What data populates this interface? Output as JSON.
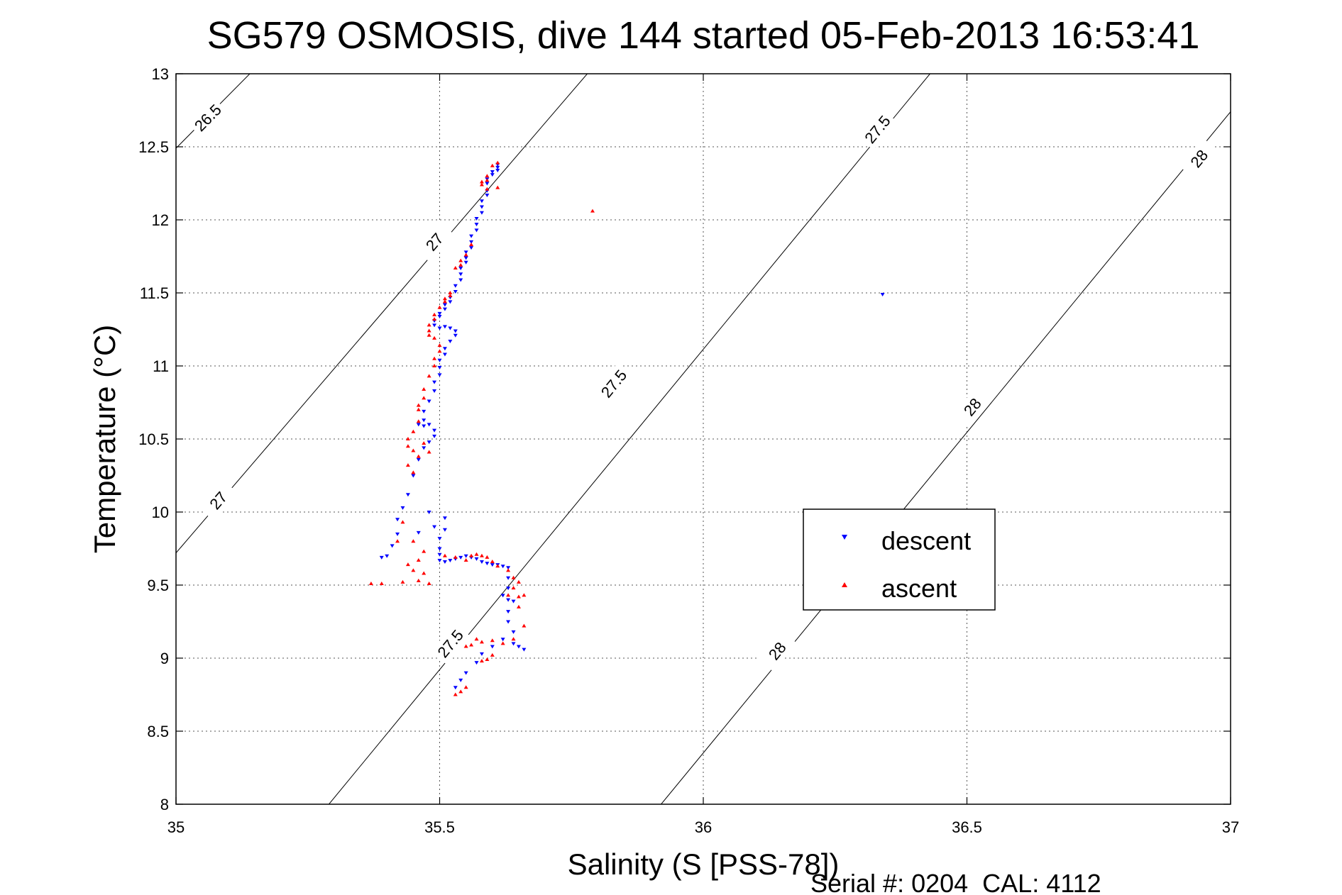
{
  "chart_data": {
    "type": "scatter",
    "title": "SG579 OSMOSIS, dive 144 started 05-Feb-2013 16:53:41",
    "xlabel": "Salinity (S [PSS-78])",
    "ylabel": "Temperature (°C)",
    "xlim": [
      35,
      37
    ],
    "ylim": [
      8,
      13
    ],
    "x_ticks": [
      "35",
      "35.5",
      "36",
      "36.5",
      "37"
    ],
    "y_ticks": [
      "8",
      "8.5",
      "9",
      "9.5",
      "10",
      "10.5",
      "11",
      "11.5",
      "12",
      "12.5",
      "13"
    ],
    "grid": true,
    "legend_position": "right",
    "footer": "Serial #: 0204  CAL: 4112",
    "isopycnals": [
      {
        "label": "26.5",
        "points": [
          [
            35.0,
            12.49
          ],
          [
            35.14,
            13.0
          ]
        ],
        "label_at": [
          [
            35.06,
            12.7
          ]
        ]
      },
      {
        "label": "27",
        "points": [
          [
            35.0,
            9.72
          ],
          [
            35.78,
            13.0
          ]
        ],
        "label_at": [
          [
            35.08,
            10.08
          ],
          [
            35.49,
            11.85
          ]
        ]
      },
      {
        "label": "27.5",
        "points": [
          [
            35.29,
            8.0
          ],
          [
            36.43,
            13.0
          ]
        ],
        "label_at": [
          [
            35.52,
            9.1
          ],
          [
            35.83,
            10.88
          ],
          [
            36.33,
            12.62
          ]
        ]
      },
      {
        "label": "28",
        "points": [
          [
            35.92,
            8.0
          ],
          [
            37.0,
            12.74
          ]
        ],
        "label_at": [
          [
            36.14,
            9.05
          ],
          [
            36.51,
            10.72
          ],
          [
            36.94,
            12.42
          ]
        ]
      }
    ],
    "series": [
      {
        "name": "descent",
        "color": "#0000ff",
        "marker": "triangle-down",
        "points": [
          [
            35.61,
            12.38
          ],
          [
            35.61,
            12.36
          ],
          [
            35.61,
            12.34
          ],
          [
            35.6,
            12.33
          ],
          [
            35.6,
            12.31
          ],
          [
            35.59,
            12.28
          ],
          [
            35.59,
            12.25
          ],
          [
            35.59,
            12.2
          ],
          [
            35.59,
            12.17
          ],
          [
            35.58,
            12.13
          ],
          [
            35.58,
            12.09
          ],
          [
            35.58,
            12.05
          ],
          [
            35.57,
            12.01
          ],
          [
            35.57,
            11.97
          ],
          [
            35.57,
            11.93
          ],
          [
            35.56,
            11.89
          ],
          [
            35.56,
            11.85
          ],
          [
            35.56,
            11.81
          ],
          [
            35.55,
            11.78
          ],
          [
            35.55,
            11.74
          ],
          [
            35.55,
            11.71
          ],
          [
            35.54,
            11.67
          ],
          [
            35.54,
            11.63
          ],
          [
            35.54,
            11.59
          ],
          [
            35.53,
            11.55
          ],
          [
            35.53,
            11.51
          ],
          [
            35.52,
            11.47
          ],
          [
            35.52,
            11.44
          ],
          [
            35.51,
            11.42
          ],
          [
            35.51,
            11.39
          ],
          [
            35.5,
            11.36
          ],
          [
            35.5,
            11.34
          ],
          [
            35.49,
            11.31
          ],
          [
            35.49,
            11.28
          ],
          [
            35.5,
            11.26
          ],
          [
            35.51,
            11.27
          ],
          [
            35.52,
            11.26
          ],
          [
            35.53,
            11.24
          ],
          [
            35.53,
            11.21
          ],
          [
            35.52,
            11.17
          ],
          [
            35.51,
            11.12
          ],
          [
            35.51,
            11.08
          ],
          [
            35.5,
            11.04
          ],
          [
            35.5,
            10.99
          ],
          [
            35.5,
            10.94
          ],
          [
            35.49,
            10.89
          ],
          [
            35.49,
            10.83
          ],
          [
            35.48,
            10.76
          ],
          [
            35.47,
            10.69
          ],
          [
            35.47,
            10.63
          ],
          [
            35.46,
            10.6
          ],
          [
            35.47,
            10.59
          ],
          [
            35.48,
            10.6
          ],
          [
            35.49,
            10.56
          ],
          [
            35.49,
            10.52
          ],
          [
            35.48,
            10.48
          ],
          [
            35.47,
            10.44
          ],
          [
            35.46,
            10.36
          ],
          [
            35.45,
            10.25
          ],
          [
            35.44,
            10.12
          ],
          [
            35.43,
            10.03
          ],
          [
            35.42,
            9.95
          ],
          [
            35.42,
            9.85
          ],
          [
            35.41,
            9.77
          ],
          [
            35.4,
            9.7
          ],
          [
            35.39,
            9.69
          ],
          [
            35.46,
            9.86
          ],
          [
            35.48,
            10.0
          ],
          [
            35.49,
            9.9
          ],
          [
            35.5,
            9.82
          ],
          [
            35.51,
            9.96
          ],
          [
            35.51,
            9.88
          ],
          [
            35.5,
            9.75
          ],
          [
            35.5,
            9.71
          ],
          [
            35.5,
            9.67
          ],
          [
            35.51,
            9.66
          ],
          [
            35.52,
            9.67
          ],
          [
            35.53,
            9.68
          ],
          [
            35.54,
            9.69
          ],
          [
            35.55,
            9.7
          ],
          [
            35.56,
            9.69
          ],
          [
            35.57,
            9.68
          ],
          [
            35.58,
            9.66
          ],
          [
            35.59,
            9.65
          ],
          [
            35.6,
            9.64
          ],
          [
            35.61,
            9.64
          ],
          [
            35.62,
            9.63
          ],
          [
            35.63,
            9.62
          ],
          [
            35.63,
            9.55
          ],
          [
            35.63,
            9.48
          ],
          [
            35.62,
            9.43
          ],
          [
            35.63,
            9.4
          ],
          [
            35.64,
            9.39
          ],
          [
            35.63,
            9.32
          ],
          [
            35.63,
            9.25
          ],
          [
            35.64,
            9.18
          ],
          [
            35.64,
            9.1
          ],
          [
            35.65,
            9.08
          ],
          [
            35.66,
            9.06
          ],
          [
            35.62,
            9.13
          ],
          [
            35.6,
            9.08
          ],
          [
            35.58,
            9.03
          ],
          [
            35.57,
            8.97
          ],
          [
            35.55,
            8.9
          ],
          [
            35.54,
            8.85
          ],
          [
            35.53,
            8.8
          ],
          [
            36.34,
            11.49
          ]
        ]
      },
      {
        "name": "ascent",
        "color": "#ff0000",
        "marker": "triangle-up",
        "points": [
          [
            35.61,
            12.39
          ],
          [
            35.6,
            12.37
          ],
          [
            35.59,
            12.3
          ],
          [
            35.59,
            12.27
          ],
          [
            35.58,
            12.26
          ],
          [
            35.58,
            12.24
          ],
          [
            35.59,
            12.21
          ],
          [
            35.61,
            12.22
          ],
          [
            35.56,
            11.83
          ],
          [
            35.55,
            11.76
          ],
          [
            35.54,
            11.72
          ],
          [
            35.54,
            11.69
          ],
          [
            35.53,
            11.67
          ],
          [
            35.52,
            11.5
          ],
          [
            35.52,
            11.48
          ],
          [
            35.51,
            11.46
          ],
          [
            35.51,
            11.44
          ],
          [
            35.5,
            11.4
          ],
          [
            35.49,
            11.35
          ],
          [
            35.49,
            11.32
          ],
          [
            35.48,
            11.28
          ],
          [
            35.48,
            11.24
          ],
          [
            35.48,
            11.21
          ],
          [
            35.49,
            11.19
          ],
          [
            35.5,
            11.14
          ],
          [
            35.5,
            11.1
          ],
          [
            35.49,
            11.05
          ],
          [
            35.49,
            11.0
          ],
          [
            35.48,
            10.93
          ],
          [
            35.47,
            10.84
          ],
          [
            35.47,
            10.78
          ],
          [
            35.46,
            10.73
          ],
          [
            35.46,
            10.7
          ],
          [
            35.46,
            10.62
          ],
          [
            35.45,
            10.55
          ],
          [
            35.44,
            10.5
          ],
          [
            35.44,
            10.45
          ],
          [
            35.45,
            10.42
          ],
          [
            35.46,
            10.38
          ],
          [
            35.47,
            10.47
          ],
          [
            35.48,
            10.41
          ],
          [
            35.44,
            10.32
          ],
          [
            35.45,
            10.27
          ],
          [
            35.43,
            9.93
          ],
          [
            35.42,
            9.8
          ],
          [
            35.45,
            9.8
          ],
          [
            35.47,
            9.73
          ],
          [
            35.46,
            9.67
          ],
          [
            35.44,
            9.64
          ],
          [
            35.45,
            9.6
          ],
          [
            35.47,
            9.58
          ],
          [
            35.46,
            9.53
          ],
          [
            35.48,
            9.51
          ],
          [
            35.43,
            9.52
          ],
          [
            35.39,
            9.51
          ],
          [
            35.37,
            9.51
          ],
          [
            35.51,
            9.7
          ],
          [
            35.53,
            9.69
          ],
          [
            35.55,
            9.67
          ],
          [
            35.56,
            9.7
          ],
          [
            35.57,
            9.71
          ],
          [
            35.58,
            9.7
          ],
          [
            35.59,
            9.69
          ],
          [
            35.6,
            9.66
          ],
          [
            35.61,
            9.63
          ],
          [
            35.63,
            9.6
          ],
          [
            35.64,
            9.55
          ],
          [
            35.65,
            9.52
          ],
          [
            35.64,
            9.48
          ],
          [
            35.63,
            9.43
          ],
          [
            35.65,
            9.42
          ],
          [
            35.66,
            9.43
          ],
          [
            35.65,
            9.35
          ],
          [
            35.66,
            9.22
          ],
          [
            35.64,
            9.13
          ],
          [
            35.62,
            9.1
          ],
          [
            35.6,
            9.02
          ],
          [
            35.59,
            8.99
          ],
          [
            35.58,
            8.98
          ],
          [
            35.6,
            9.12
          ],
          [
            35.58,
            9.11
          ],
          [
            35.56,
            9.09
          ],
          [
            35.55,
            9.08
          ],
          [
            35.57,
            9.13
          ],
          [
            35.55,
            8.8
          ],
          [
            35.54,
            8.77
          ],
          [
            35.53,
            8.75
          ],
          [
            35.79,
            12.06
          ]
        ]
      }
    ]
  }
}
